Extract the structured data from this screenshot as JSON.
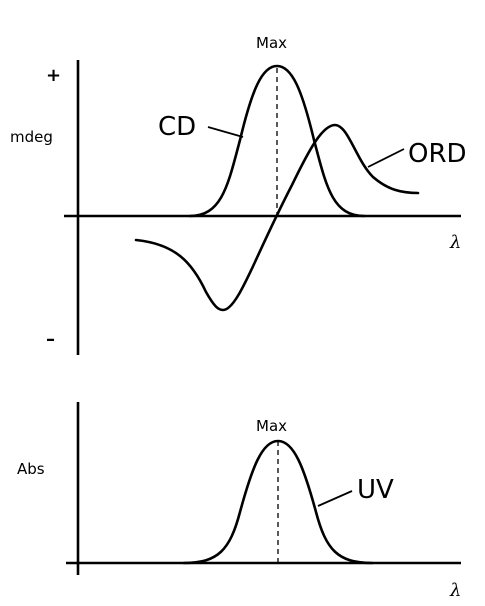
{
  "top_panel": {
    "y_unit": "mdeg",
    "plus_sign": "+",
    "minus_sign": "–",
    "max_label": "Max",
    "x_label": "λ",
    "cd_label": "CD",
    "ord_label": "ORD"
  },
  "bottom_panel": {
    "y_label": "Abs",
    "max_label": "Max",
    "x_label": "λ",
    "uv_label": "UV"
  }
}
